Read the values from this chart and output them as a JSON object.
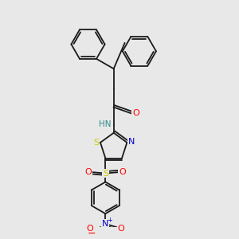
{
  "background_color": "#e8e8e8",
  "bond_color": "#1a1a1a",
  "atom_colors": {
    "O": "#ff0000",
    "N": "#0000cc",
    "S": "#cccc00",
    "H": "#2e8b8b",
    "C": "#1a1a1a"
  }
}
